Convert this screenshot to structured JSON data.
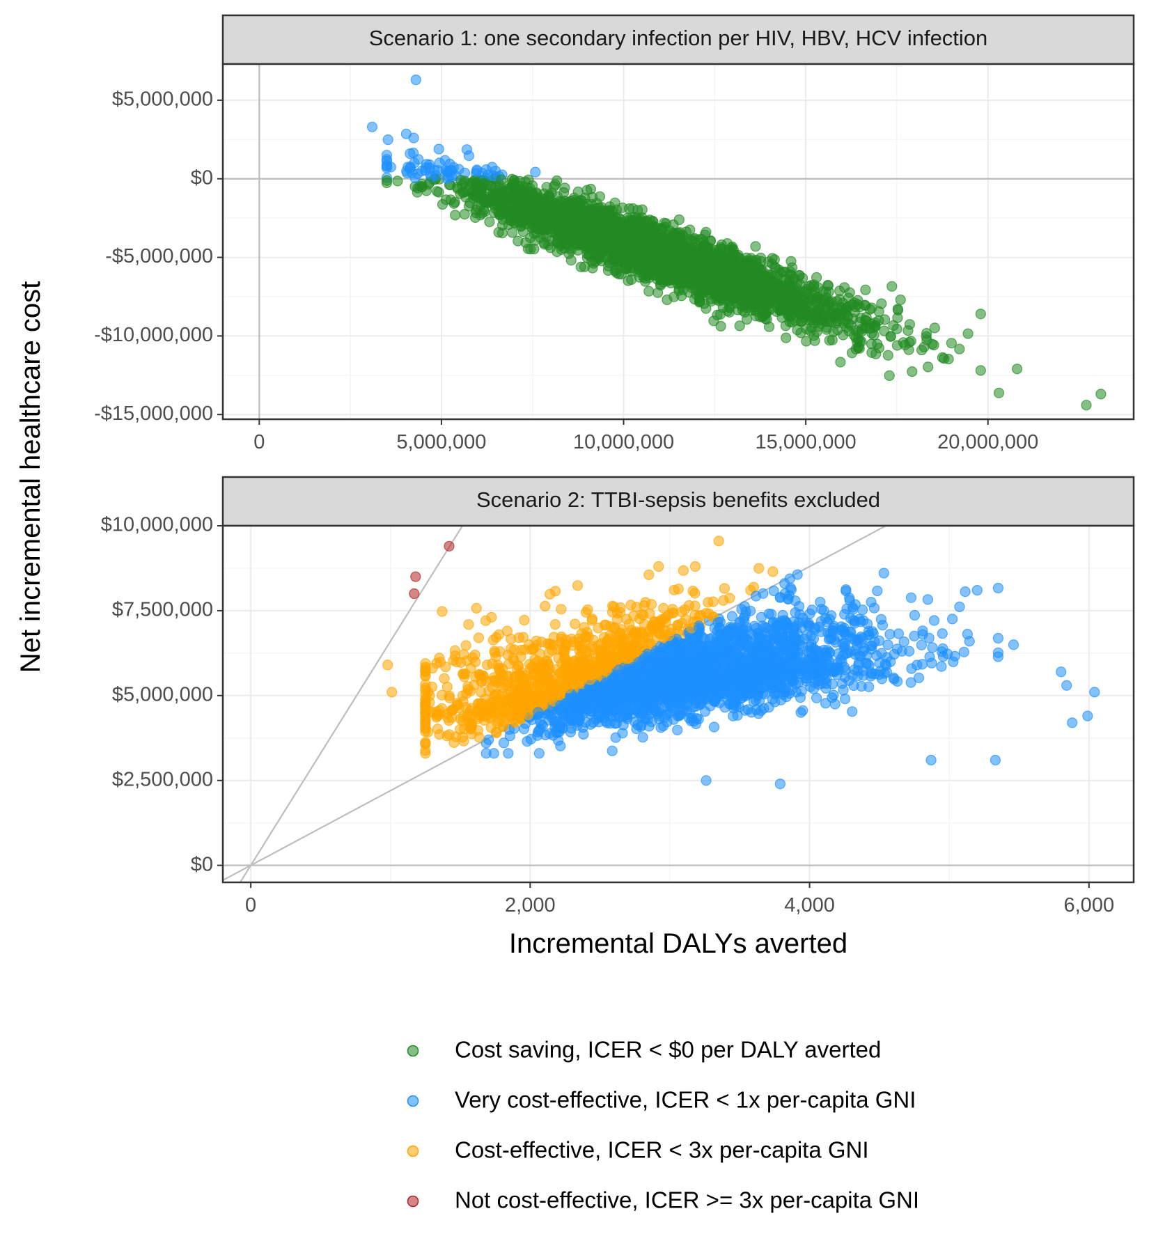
{
  "chart_data": [
    {
      "type": "scatter",
      "panel": "top",
      "strip_title": "Scenario 1: one secondary infection per HIV, HBV, HCV infection",
      "xlim": [
        -1000000,
        24000000
      ],
      "ylim": [
        -15300000,
        7300000
      ],
      "x_ticks": [
        0,
        5000000,
        10000000,
        15000000,
        20000000
      ],
      "x_tick_labels": [
        "0",
        "5,000,000",
        "10,000,000",
        "15,000,000",
        "20,000,000"
      ],
      "y_ticks": [
        5000000,
        0,
        -5000000,
        -10000000,
        -15000000
      ],
      "y_tick_labels": [
        "$5,000,000",
        "$0",
        "-$5,000,000",
        "-$10,000,000",
        "-$15,000,000"
      ],
      "grid": true,
      "reference_lines": [
        {
          "orientation": "horizontal",
          "value": 0
        },
        {
          "orientation": "vertical",
          "value": 0
        }
      ],
      "cloud": {
        "n": 3200,
        "x_mean": 11000000,
        "x_sd": 2700000,
        "y_slope": -0.8,
        "y_intercept": 4000000,
        "y_noise_sd": 900000
      },
      "outliers": [
        {
          "x": 4300000,
          "y": 6300000
        },
        {
          "x": 3100000,
          "y": 3300000
        },
        {
          "x": 22700000,
          "y": -14400000
        },
        {
          "x": 23100000,
          "y": -13700000
        },
        {
          "x": 20800000,
          "y": -12100000
        },
        {
          "x": 19800000,
          "y": -12200000
        },
        {
          "x": 19800000,
          "y": -8600000
        },
        {
          "x": 17600000,
          "y": -7700000
        }
      ],
      "classification": {
        "cost_saving_if": "y < 0",
        "very_cost_effective_if": "y >= 0"
      }
    },
    {
      "type": "scatter",
      "panel": "bottom",
      "strip_title": "Scenario 2: TTBI-sepsis benefits excluded",
      "xlim": [
        -200,
        6320
      ],
      "ylim": [
        -500000,
        10000000
      ],
      "x_ticks": [
        0,
        2000,
        4000,
        6000
      ],
      "x_tick_labels": [
        "0",
        "2,000",
        "4,000",
        "6,000"
      ],
      "y_ticks": [
        10000000,
        7500000,
        5000000,
        2500000,
        0
      ],
      "y_tick_labels": [
        "$10,000,000",
        "$7,500,000",
        "$5,000,000",
        "$2,500,000",
        "$0"
      ],
      "grid": true,
      "reference_lines": [
        {
          "orientation": "horizontal",
          "value": 0
        },
        {
          "orientation": "diagonal",
          "slope": 6600,
          "label": "3x per-capita GNI threshold"
        },
        {
          "orientation": "diagonal",
          "slope": 2200,
          "label": "1x per-capita GNI threshold"
        }
      ],
      "cloud": {
        "n": 3200,
        "x_mean": 2950,
        "x_sd": 750,
        "y_base": 4450000,
        "y_slope": 520,
        "y_noise_sd": 1050000
      },
      "outliers": [
        {
          "x": 1420,
          "y": 9400000
        },
        {
          "x": 1180,
          "y": 8500000
        },
        {
          "x": 1170,
          "y": 8000000
        },
        {
          "x": 3350,
          "y": 9550000
        },
        {
          "x": 5200,
          "y": 8100000
        },
        {
          "x": 5460,
          "y": 6500000
        },
        {
          "x": 5800,
          "y": 5700000
        },
        {
          "x": 5840,
          "y": 5300000
        },
        {
          "x": 6040,
          "y": 5100000
        },
        {
          "x": 5880,
          "y": 4200000
        },
        {
          "x": 5990,
          "y": 4400000
        },
        {
          "x": 5330,
          "y": 3100000
        },
        {
          "x": 4870,
          "y": 3100000
        },
        {
          "x": 980,
          "y": 5900000
        },
        {
          "x": 1010,
          "y": 5100000
        },
        {
          "x": 1280,
          "y": 4800000
        },
        {
          "x": 1740,
          "y": 3300000
        },
        {
          "x": 3790,
          "y": 2400000
        },
        {
          "x": 3260,
          "y": 2500000
        }
      ],
      "classification": {
        "not_cost_effective_if": "y > 6600 * x",
        "cost_effective_if": "y > 2200 * x",
        "very_cost_effective_if": "otherwise"
      }
    }
  ],
  "axes": {
    "y_title": "Net incremental healthcare cost",
    "x_title": "Incremental DALYs averted"
  },
  "legend": {
    "position": "bottom",
    "items": [
      {
        "key": "cost_saving",
        "label": "Cost saving, ICER < $0 per DALY averted",
        "color": "#228b22"
      },
      {
        "key": "very_cost_effective",
        "label": "Very cost-effective, ICER < 1x per-capita GNI",
        "color": "#1e90ff"
      },
      {
        "key": "cost_effective",
        "label": "Cost-effective, ICER < 3x per-capita GNI",
        "color": "#ffa500"
      },
      {
        "key": "not_cost_effective",
        "label": "Not cost-effective, ICER >= 3x per-capita GNI",
        "color": "#b22222"
      }
    ]
  }
}
